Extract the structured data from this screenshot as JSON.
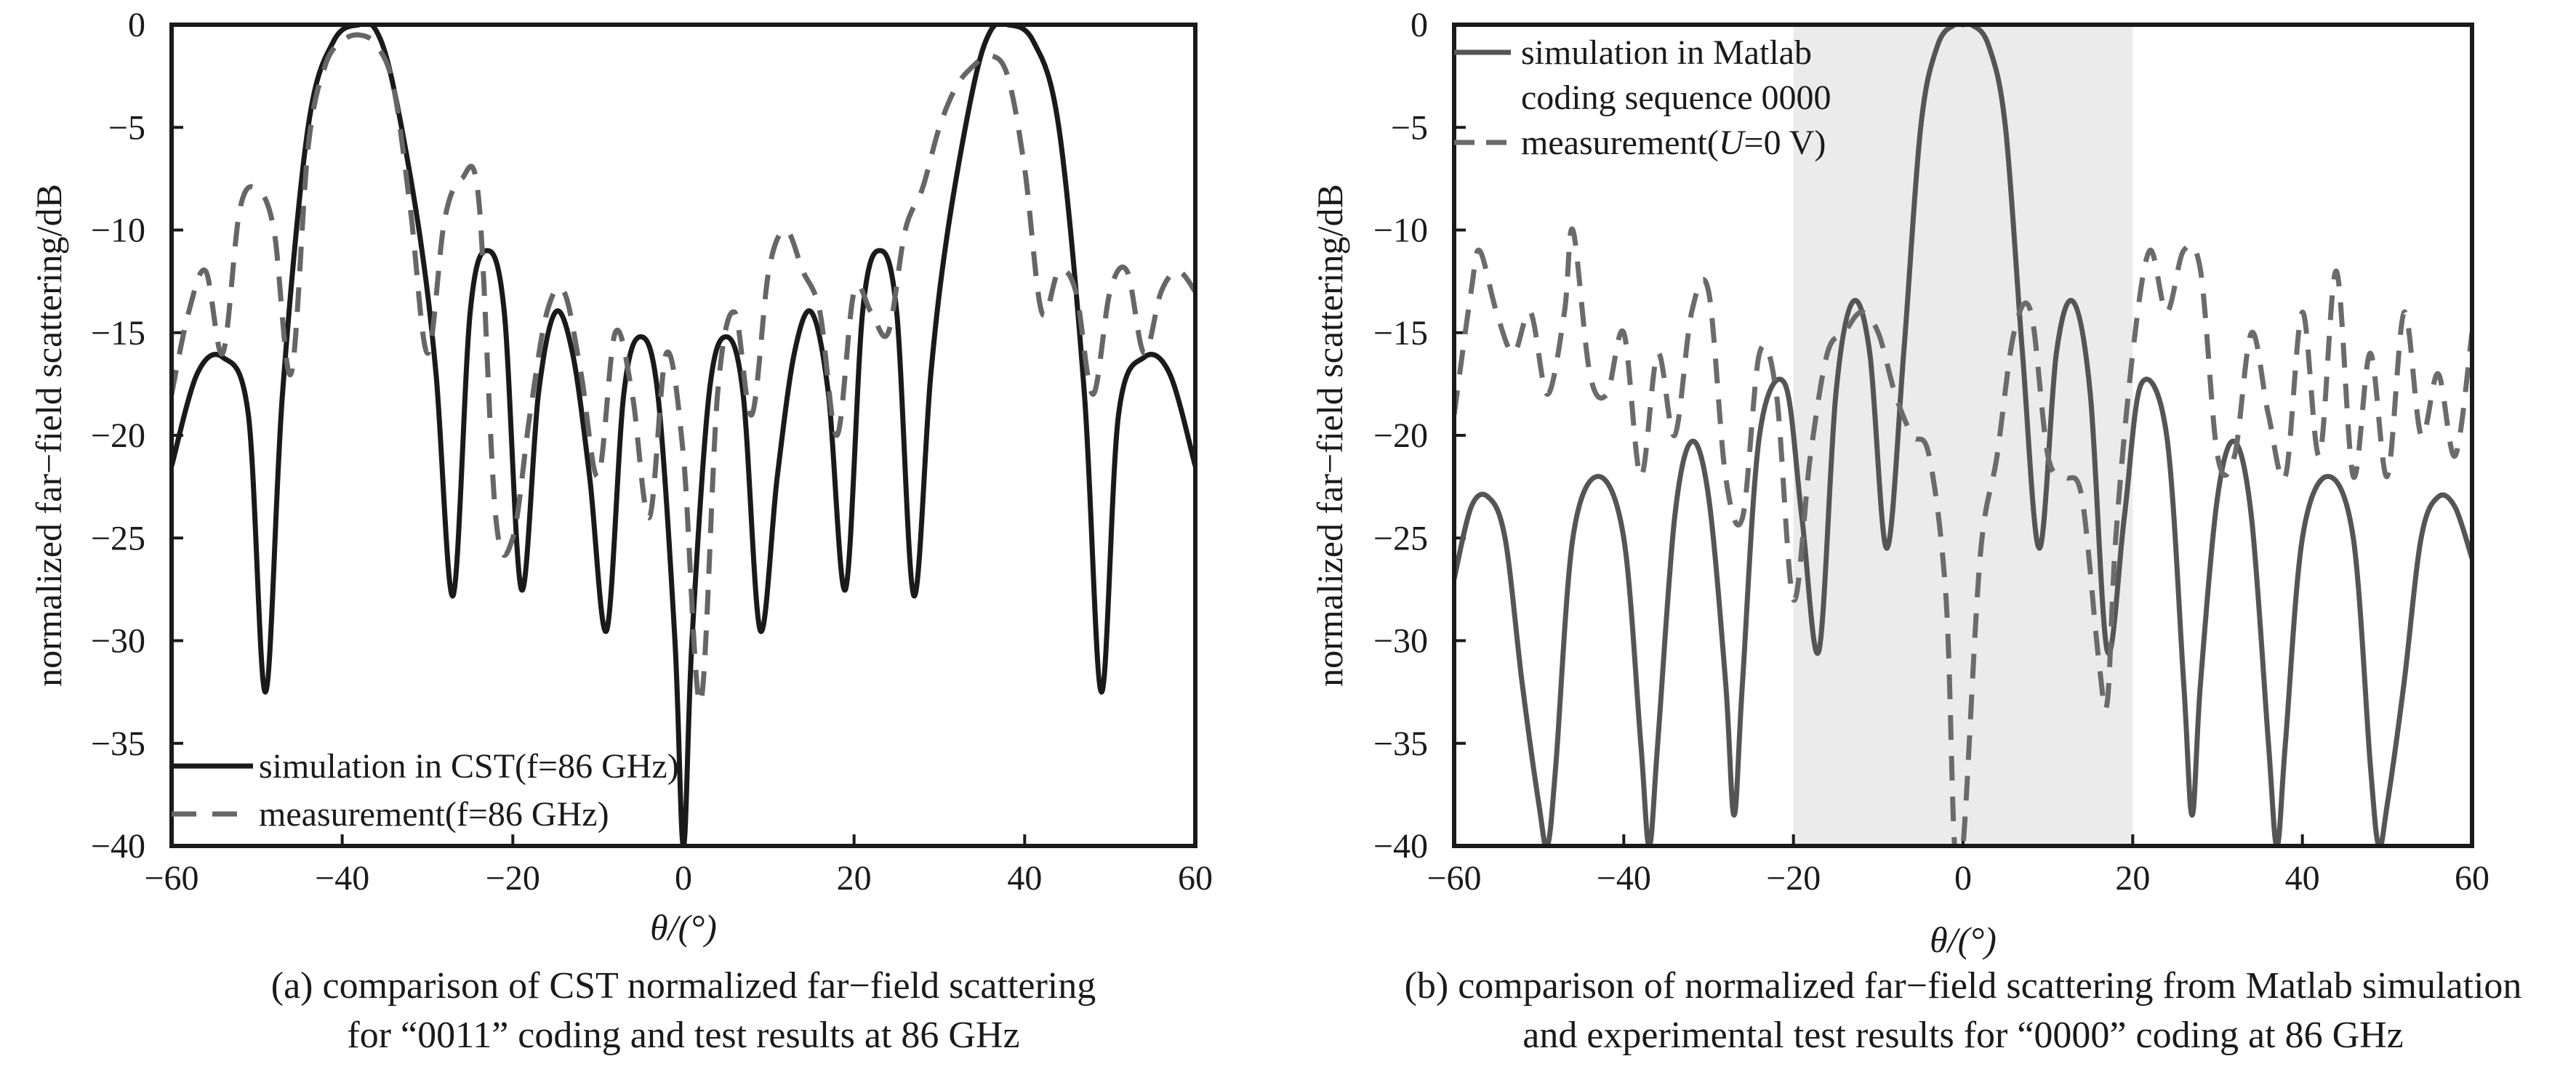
{
  "chart_data": [
    {
      "type": "line",
      "panel": "a",
      "xlabel": "θ/(°)",
      "ylabel": "normalized far−field scattering/dB",
      "xlim": [
        -60,
        60
      ],
      "ylim": [
        -40,
        0
      ],
      "xticks": [
        -60,
        -40,
        -20,
        0,
        20,
        40,
        60
      ],
      "yticks": [
        0,
        -5,
        -10,
        -15,
        -20,
        -25,
        -30,
        -35,
        -40
      ],
      "legend_position": "bottom-left",
      "caption": {
        "line1": "(a) comparison of CST normalized far−field scattering",
        "line2": "for “0011” coding and test results at 86 GHz"
      },
      "series": [
        {
          "name": "simulation in CST(f=86 GHz)",
          "style": "solid",
          "color": "#1a1a1a",
          "x": [
            -60,
            -57,
            -54,
            -51,
            -49,
            -47,
            -44,
            -41,
            -38,
            -36,
            -34,
            -31,
            -29,
            -27,
            -25,
            -23,
            -21,
            -19,
            -17,
            -15,
            -13,
            -11,
            -9,
            -7,
            -5,
            -3,
            -1,
            0,
            1,
            3,
            5,
            7,
            9,
            11,
            13,
            15,
            17,
            19,
            21,
            23,
            25,
            27,
            29,
            31,
            34,
            36,
            38,
            41,
            44,
            47,
            49,
            51,
            54,
            57,
            60
          ],
          "y": [
            -21.5,
            -17,
            -16.2,
            -19,
            -32.5,
            -18,
            -5,
            -0.8,
            0,
            -0.3,
            -3,
            -10,
            -17,
            -27.8,
            -14,
            -11,
            -14,
            -27.5,
            -18,
            -14,
            -16,
            -22,
            -29.5,
            -18,
            -15.2,
            -18,
            -30,
            -40,
            -30,
            -18,
            -15.2,
            -18,
            -29.5,
            -22,
            -16,
            -14,
            -18,
            -27.5,
            -14,
            -11,
            -14,
            -27.8,
            -17,
            -10,
            -3,
            -0.3,
            0,
            -0.8,
            -5,
            -18,
            -32.5,
            -19,
            -16.2,
            -17,
            -21.5
          ]
        },
        {
          "name": "measurement(f=86 GHz)",
          "style": "dashed",
          "color": "#666666",
          "x": [
            -60,
            -58,
            -56,
            -54,
            -52,
            -50,
            -48,
            -46,
            -44,
            -42,
            -40,
            -38,
            -36,
            -34,
            -32,
            -30,
            -28,
            -26,
            -24,
            -22,
            -20,
            -18,
            -16,
            -14,
            -12,
            -10,
            -8,
            -6,
            -4,
            -2,
            0,
            2,
            4,
            6,
            8,
            10,
            12,
            14,
            16,
            18,
            20,
            22,
            24,
            26,
            28,
            30,
            32,
            34,
            36,
            38,
            40,
            42,
            44,
            46,
            48,
            50,
            52,
            54,
            56,
            58,
            60
          ],
          "y": [
            -18,
            -14,
            -12,
            -16,
            -9,
            -8,
            -10,
            -17,
            -6,
            -2,
            -0.8,
            -0.5,
            -1,
            -3,
            -9,
            -16,
            -9.5,
            -7.5,
            -8.5,
            -24,
            -25,
            -19,
            -14,
            -13,
            -17,
            -22,
            -15,
            -18,
            -24,
            -16,
            -21,
            -33,
            -18,
            -14,
            -19,
            -12,
            -10,
            -12,
            -14,
            -20,
            -13,
            -14,
            -15,
            -10,
            -8,
            -5,
            -3,
            -2,
            -1.5,
            -2.5,
            -7,
            -14,
            -12,
            -13,
            -18,
            -13,
            -12,
            -16,
            -13,
            -12,
            -13
          ]
        }
      ]
    },
    {
      "type": "line",
      "panel": "b",
      "xlabel": "θ/(°)",
      "ylabel": "normalized far−field scattering/dB",
      "xlim": [
        -60,
        60
      ],
      "ylim": [
        -40,
        0
      ],
      "xticks": [
        -60,
        -40,
        -20,
        0,
        20,
        40,
        60
      ],
      "yticks": [
        0,
        -5,
        -10,
        -15,
        -20,
        -25,
        -30,
        -35,
        -40
      ],
      "shaded_region": [
        -20,
        20
      ],
      "legend_position": "top-left",
      "caption": {
        "line1": "(b) comparison of normalized far−field scattering from Matlab simulation",
        "line2": "and experimental test results for “0000” coding at 86 GHz"
      },
      "series": [
        {
          "name": "simulation in Matlab coding sequence 0000",
          "name_line1": "simulation in Matlab",
          "name_line2": "coding sequence 0000",
          "style": "solid",
          "color": "#555555",
          "x": [
            -60,
            -58,
            -56,
            -54,
            -52,
            -50,
            -49,
            -48,
            -46,
            -43,
            -40,
            -38,
            -37,
            -36,
            -34,
            -32,
            -30,
            -28,
            -27,
            -26,
            -24,
            -21,
            -19,
            -17,
            -15,
            -13,
            -11,
            -9,
            -7,
            -5,
            -3,
            -1,
            0,
            1,
            3,
            5,
            7,
            9,
            11,
            13,
            15,
            17,
            19,
            21,
            24,
            26,
            27,
            28,
            30,
            32,
            34,
            36,
            37,
            38,
            40,
            43,
            46,
            48,
            49,
            50,
            52,
            54,
            56,
            58,
            60
          ],
          "y": [
            -27,
            -23.5,
            -23,
            -25,
            -32,
            -38,
            -40,
            -36,
            -25,
            -22,
            -25,
            -35,
            -40,
            -35,
            -24,
            -20.3,
            -23,
            -32,
            -38.5,
            -32,
            -20,
            -17.5,
            -24,
            -30.5,
            -18,
            -13.5,
            -16,
            -25.5,
            -16,
            -5,
            -1,
            0,
            0,
            0,
            -1,
            -5,
            -16,
            -25.5,
            -16,
            -13.5,
            -18,
            -30.5,
            -24,
            -17.5,
            -20,
            -32,
            -38.5,
            -32,
            -23,
            -20.3,
            -24,
            -35,
            -40,
            -35,
            -25,
            -22,
            -25,
            -36,
            -40,
            -38,
            -32,
            -25,
            -23,
            -23.5,
            -26
          ]
        },
        {
          "name": "measurement(U=0 V)",
          "name_prefix": "measurement(",
          "name_italic": "U",
          "name_suffix": "=0 V)",
          "style": "dashed",
          "color": "#6b6b6b",
          "x": [
            -60,
            -58,
            -57,
            -55,
            -53,
            -51,
            -49,
            -47,
            -46,
            -44,
            -42,
            -40,
            -38,
            -36,
            -34,
            -32,
            -30,
            -28,
            -26,
            -24,
            -22,
            -20,
            -18,
            -16,
            -14,
            -12,
            -10,
            -8,
            -6,
            -4,
            -2,
            -1,
            0,
            2,
            4,
            6,
            8,
            10,
            12,
            14,
            16,
            17,
            18,
            20,
            22,
            24,
            26,
            28,
            30,
            32,
            34,
            36,
            38,
            40,
            42,
            44,
            46,
            48,
            50,
            52,
            54,
            56,
            58,
            60
          ],
          "y": [
            -19,
            -13,
            -11,
            -14,
            -16,
            -14,
            -18,
            -14,
            -10,
            -17,
            -18,
            -15,
            -22,
            -16,
            -20,
            -14,
            -13,
            -22,
            -24,
            -16,
            -18,
            -28,
            -21,
            -16,
            -15,
            -14,
            -15,
            -18,
            -20,
            -21,
            -28,
            -40,
            -40,
            -26,
            -21,
            -15,
            -14,
            -21,
            -22,
            -23,
            -31,
            -33,
            -25,
            -16,
            -11,
            -14,
            -11,
            -12,
            -21,
            -21,
            -15,
            -19,
            -22,
            -14,
            -21,
            -12,
            -22,
            -16,
            -22,
            -14,
            -20,
            -17,
            -21,
            -15
          ]
        }
      ]
    }
  ]
}
